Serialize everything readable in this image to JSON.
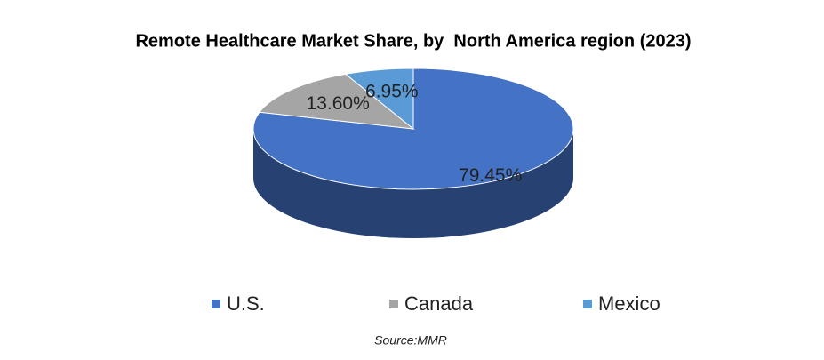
{
  "chart_data": {
    "type": "pie",
    "title": "Remote Healthcare Market Share, by  North America region (2023)",
    "categories": [
      "U.S.",
      "Canada",
      "Mexico"
    ],
    "values": [
      79.45,
      13.6,
      6.95
    ],
    "value_labels": [
      "79.45%",
      "13.60%",
      "6.95%"
    ],
    "colors": [
      "#4472c4",
      "#a5a5a5",
      "#5b9bd5"
    ],
    "legend": "bottom",
    "source": "Source:MMR"
  }
}
